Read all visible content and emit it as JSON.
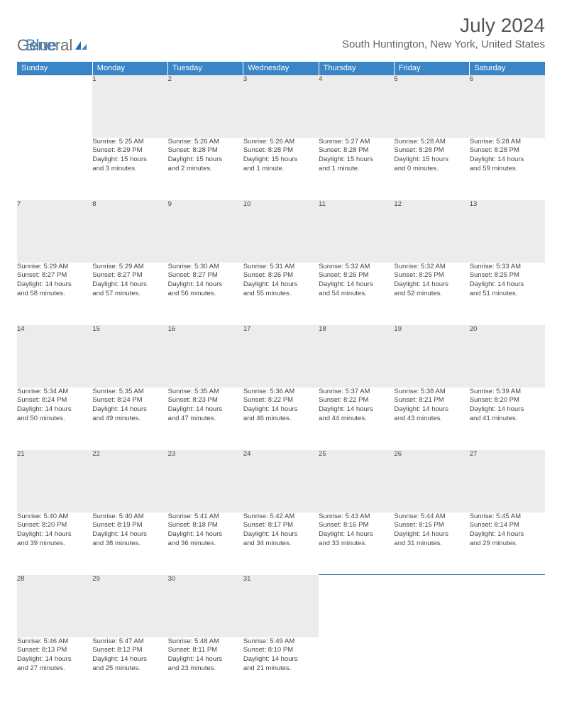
{
  "brand": {
    "part1": "General",
    "part2": "Blue"
  },
  "title": "July 2024",
  "location": "South Huntington, New York, United States",
  "colors": {
    "header_bg": "#3a85c8",
    "header_text": "#ffffff",
    "daynum_bg": "#ececec",
    "rule": "#3a6ea8",
    "body_text": "#444444",
    "page_bg": "#ffffff"
  },
  "fonts": {
    "title_size_pt": 21,
    "location_size_pt": 11,
    "header_size_pt": 8,
    "cell_size_pt": 7
  },
  "weekday_labels": [
    "Sunday",
    "Monday",
    "Tuesday",
    "Wednesday",
    "Thursday",
    "Friday",
    "Saturday"
  ],
  "weeks": [
    {
      "nums": [
        "",
        "1",
        "2",
        "3",
        "4",
        "5",
        "6"
      ],
      "cells": [
        null,
        {
          "sunrise": "Sunrise: 5:25 AM",
          "sunset": "Sunset: 8:29 PM",
          "day1": "Daylight: 15 hours",
          "day2": "and 3 minutes."
        },
        {
          "sunrise": "Sunrise: 5:26 AM",
          "sunset": "Sunset: 8:28 PM",
          "day1": "Daylight: 15 hours",
          "day2": "and 2 minutes."
        },
        {
          "sunrise": "Sunrise: 5:26 AM",
          "sunset": "Sunset: 8:28 PM",
          "day1": "Daylight: 15 hours",
          "day2": "and 1 minute."
        },
        {
          "sunrise": "Sunrise: 5:27 AM",
          "sunset": "Sunset: 8:28 PM",
          "day1": "Daylight: 15 hours",
          "day2": "and 1 minute."
        },
        {
          "sunrise": "Sunrise: 5:28 AM",
          "sunset": "Sunset: 8:28 PM",
          "day1": "Daylight: 15 hours",
          "day2": "and 0 minutes."
        },
        {
          "sunrise": "Sunrise: 5:28 AM",
          "sunset": "Sunset: 8:28 PM",
          "day1": "Daylight: 14 hours",
          "day2": "and 59 minutes."
        }
      ]
    },
    {
      "nums": [
        "7",
        "8",
        "9",
        "10",
        "11",
        "12",
        "13"
      ],
      "cells": [
        {
          "sunrise": "Sunrise: 5:29 AM",
          "sunset": "Sunset: 8:27 PM",
          "day1": "Daylight: 14 hours",
          "day2": "and 58 minutes."
        },
        {
          "sunrise": "Sunrise: 5:29 AM",
          "sunset": "Sunset: 8:27 PM",
          "day1": "Daylight: 14 hours",
          "day2": "and 57 minutes."
        },
        {
          "sunrise": "Sunrise: 5:30 AM",
          "sunset": "Sunset: 8:27 PM",
          "day1": "Daylight: 14 hours",
          "day2": "and 56 minutes."
        },
        {
          "sunrise": "Sunrise: 5:31 AM",
          "sunset": "Sunset: 8:26 PM",
          "day1": "Daylight: 14 hours",
          "day2": "and 55 minutes."
        },
        {
          "sunrise": "Sunrise: 5:32 AM",
          "sunset": "Sunset: 8:26 PM",
          "day1": "Daylight: 14 hours",
          "day2": "and 54 minutes."
        },
        {
          "sunrise": "Sunrise: 5:32 AM",
          "sunset": "Sunset: 8:25 PM",
          "day1": "Daylight: 14 hours",
          "day2": "and 52 minutes."
        },
        {
          "sunrise": "Sunrise: 5:33 AM",
          "sunset": "Sunset: 8:25 PM",
          "day1": "Daylight: 14 hours",
          "day2": "and 51 minutes."
        }
      ]
    },
    {
      "nums": [
        "14",
        "15",
        "16",
        "17",
        "18",
        "19",
        "20"
      ],
      "cells": [
        {
          "sunrise": "Sunrise: 5:34 AM",
          "sunset": "Sunset: 8:24 PM",
          "day1": "Daylight: 14 hours",
          "day2": "and 50 minutes."
        },
        {
          "sunrise": "Sunrise: 5:35 AM",
          "sunset": "Sunset: 8:24 PM",
          "day1": "Daylight: 14 hours",
          "day2": "and 49 minutes."
        },
        {
          "sunrise": "Sunrise: 5:35 AM",
          "sunset": "Sunset: 8:23 PM",
          "day1": "Daylight: 14 hours",
          "day2": "and 47 minutes."
        },
        {
          "sunrise": "Sunrise: 5:36 AM",
          "sunset": "Sunset: 8:22 PM",
          "day1": "Daylight: 14 hours",
          "day2": "and 46 minutes."
        },
        {
          "sunrise": "Sunrise: 5:37 AM",
          "sunset": "Sunset: 8:22 PM",
          "day1": "Daylight: 14 hours",
          "day2": "and 44 minutes."
        },
        {
          "sunrise": "Sunrise: 5:38 AM",
          "sunset": "Sunset: 8:21 PM",
          "day1": "Daylight: 14 hours",
          "day2": "and 43 minutes."
        },
        {
          "sunrise": "Sunrise: 5:39 AM",
          "sunset": "Sunset: 8:20 PM",
          "day1": "Daylight: 14 hours",
          "day2": "and 41 minutes."
        }
      ]
    },
    {
      "nums": [
        "21",
        "22",
        "23",
        "24",
        "25",
        "26",
        "27"
      ],
      "cells": [
        {
          "sunrise": "Sunrise: 5:40 AM",
          "sunset": "Sunset: 8:20 PM",
          "day1": "Daylight: 14 hours",
          "day2": "and 39 minutes."
        },
        {
          "sunrise": "Sunrise: 5:40 AM",
          "sunset": "Sunset: 8:19 PM",
          "day1": "Daylight: 14 hours",
          "day2": "and 38 minutes."
        },
        {
          "sunrise": "Sunrise: 5:41 AM",
          "sunset": "Sunset: 8:18 PM",
          "day1": "Daylight: 14 hours",
          "day2": "and 36 minutes."
        },
        {
          "sunrise": "Sunrise: 5:42 AM",
          "sunset": "Sunset: 8:17 PM",
          "day1": "Daylight: 14 hours",
          "day2": "and 34 minutes."
        },
        {
          "sunrise": "Sunrise: 5:43 AM",
          "sunset": "Sunset: 8:16 PM",
          "day1": "Daylight: 14 hours",
          "day2": "and 33 minutes."
        },
        {
          "sunrise": "Sunrise: 5:44 AM",
          "sunset": "Sunset: 8:15 PM",
          "day1": "Daylight: 14 hours",
          "day2": "and 31 minutes."
        },
        {
          "sunrise": "Sunrise: 5:45 AM",
          "sunset": "Sunset: 8:14 PM",
          "day1": "Daylight: 14 hours",
          "day2": "and 29 minutes."
        }
      ]
    },
    {
      "nums": [
        "28",
        "29",
        "30",
        "31",
        "",
        "",
        ""
      ],
      "cells": [
        {
          "sunrise": "Sunrise: 5:46 AM",
          "sunset": "Sunset: 8:13 PM",
          "day1": "Daylight: 14 hours",
          "day2": "and 27 minutes."
        },
        {
          "sunrise": "Sunrise: 5:47 AM",
          "sunset": "Sunset: 8:12 PM",
          "day1": "Daylight: 14 hours",
          "day2": "and 25 minutes."
        },
        {
          "sunrise": "Sunrise: 5:48 AM",
          "sunset": "Sunset: 8:11 PM",
          "day1": "Daylight: 14 hours",
          "day2": "and 23 minutes."
        },
        {
          "sunrise": "Sunrise: 5:49 AM",
          "sunset": "Sunset: 8:10 PM",
          "day1": "Daylight: 14 hours",
          "day2": "and 21 minutes."
        },
        null,
        null,
        null
      ]
    }
  ]
}
